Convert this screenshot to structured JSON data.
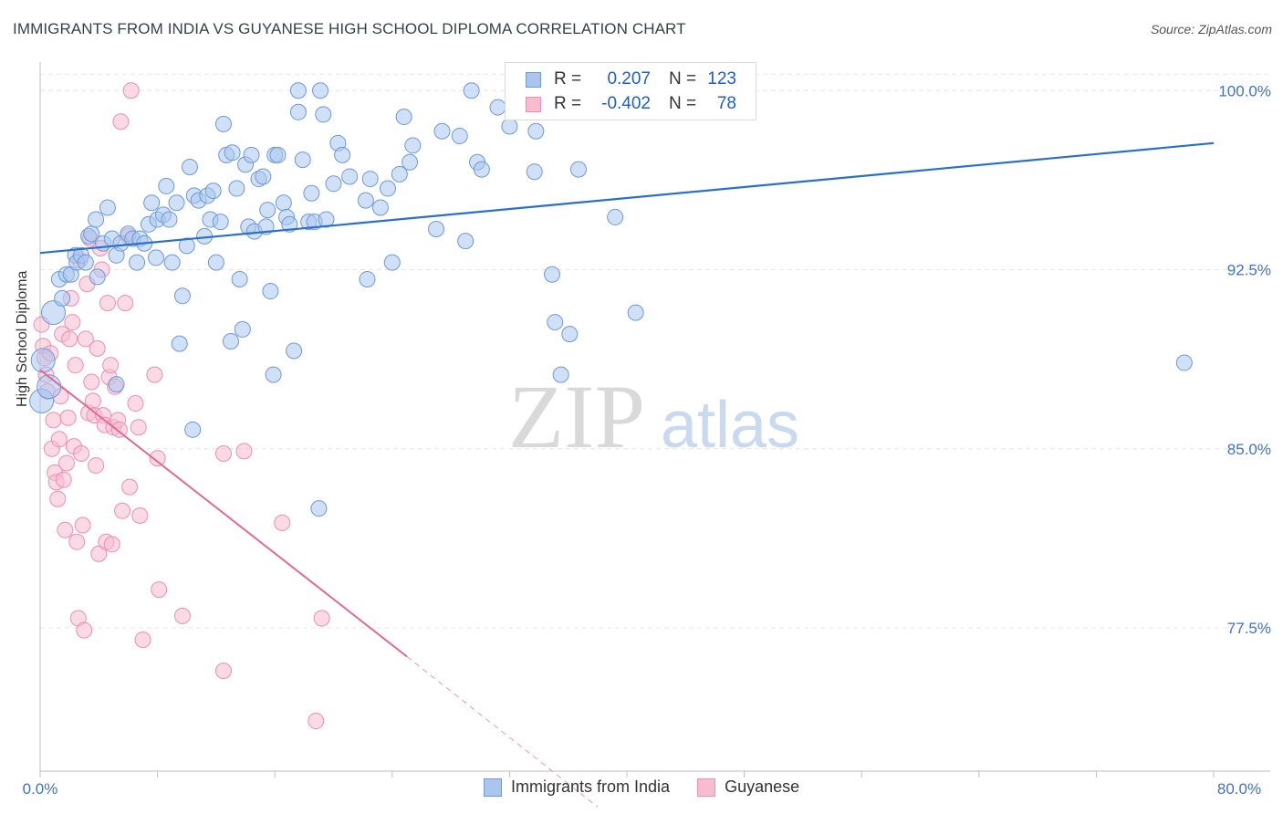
{
  "title": "IMMIGRANTS FROM INDIA VS GUYANESE HIGH SCHOOL DIPLOMA CORRELATION CHART",
  "source": "Source: ZipAtlas.com",
  "watermark": {
    "zip": "ZIP",
    "atlas": "atlas"
  },
  "legend": {
    "rows": [
      {
        "r_label": "R =",
        "r_value": "0.207",
        "n_label": "N =",
        "n_value": "123",
        "color": "#7ba7e0"
      },
      {
        "r_label": "R =",
        "r_value": "-0.402",
        "n_label": "N =",
        "n_value": "78",
        "color": "#f29bb8"
      }
    ]
  },
  "bottom_legend": [
    "Immigrants from India",
    "Guyanese"
  ],
  "colors": {
    "india_fill": "#aac6ee",
    "india_stroke": "#6d9ad8",
    "india_line": "#2c6fca",
    "guy_fill": "#f7bcd0",
    "guy_stroke": "#ec8fb0",
    "guy_line": "#e06a95",
    "grid": "#e6e6e6",
    "tick_text": "#4472c4"
  },
  "chart_data": {
    "type": "scatter",
    "title": "IMMIGRANTS FROM INDIA VS GUYANESE HIGH SCHOOL DIPLOMA CORRELATION CHART",
    "xlabel": "",
    "ylabel": "High School Diploma",
    "xlim": [
      0,
      80
    ],
    "ylim": [
      71.5,
      101.5
    ],
    "x_tick_labels": [
      "0.0%",
      "80.0%"
    ],
    "y_ticks": [
      77.5,
      85.0,
      92.5,
      100.0
    ],
    "y_tick_labels": [
      "77.5%",
      "85.0%",
      "92.5%",
      "100.0%"
    ],
    "grid": "horizontal dashed",
    "legend_position": "top-center",
    "series": [
      {
        "name": "Immigrants from India",
        "R": 0.207,
        "N": 123,
        "trend": {
          "x": [
            0,
            80
          ],
          "y": [
            93.2,
            97.8
          ]
        },
        "points": [
          [
            0.1,
            87.0
          ],
          [
            0.2,
            88.7
          ],
          [
            0.6,
            87.6
          ],
          [
            0.9,
            90.7
          ],
          [
            1.3,
            92.1
          ],
          [
            1.5,
            91.3
          ],
          [
            1.8,
            92.3
          ],
          [
            2.1,
            92.3
          ],
          [
            2.4,
            93.1
          ],
          [
            2.5,
            92.8
          ],
          [
            2.8,
            93.1
          ],
          [
            3.1,
            92.8
          ],
          [
            3.3,
            93.9
          ],
          [
            3.5,
            94.0
          ],
          [
            3.8,
            94.6
          ],
          [
            3.9,
            92.2
          ],
          [
            4.3,
            93.6
          ],
          [
            4.6,
            95.1
          ],
          [
            4.9,
            93.8
          ],
          [
            5.2,
            93.1
          ],
          [
            5.2,
            87.7
          ],
          [
            5.5,
            93.6
          ],
          [
            6.0,
            94.0
          ],
          [
            6.3,
            93.8
          ],
          [
            6.6,
            92.8
          ],
          [
            6.8,
            93.8
          ],
          [
            7.1,
            93.6
          ],
          [
            7.4,
            94.4
          ],
          [
            7.6,
            95.3
          ],
          [
            7.9,
            93.0
          ],
          [
            8.0,
            94.6
          ],
          [
            8.4,
            94.8
          ],
          [
            8.6,
            96.0
          ],
          [
            8.8,
            94.6
          ],
          [
            9.0,
            92.8
          ],
          [
            9.3,
            95.3
          ],
          [
            9.5,
            89.4
          ],
          [
            9.7,
            91.4
          ],
          [
            10.0,
            93.5
          ],
          [
            10.2,
            96.8
          ],
          [
            10.4,
            85.8
          ],
          [
            10.5,
            95.6
          ],
          [
            10.8,
            95.4
          ],
          [
            11.2,
            93.9
          ],
          [
            11.4,
            95.6
          ],
          [
            11.6,
            94.6
          ],
          [
            11.8,
            95.8
          ],
          [
            12.0,
            92.8
          ],
          [
            12.3,
            94.5
          ],
          [
            12.5,
            98.6
          ],
          [
            12.7,
            97.3
          ],
          [
            13.0,
            89.5
          ],
          [
            13.1,
            97.4
          ],
          [
            13.4,
            95.9
          ],
          [
            13.6,
            92.1
          ],
          [
            13.8,
            90.0
          ],
          [
            14.0,
            96.9
          ],
          [
            14.2,
            94.3
          ],
          [
            14.4,
            97.3
          ],
          [
            14.6,
            94.1
          ],
          [
            14.9,
            96.3
          ],
          [
            15.2,
            96.4
          ],
          [
            15.4,
            94.3
          ],
          [
            15.5,
            95.0
          ],
          [
            15.7,
            91.6
          ],
          [
            15.9,
            88.1
          ],
          [
            16.0,
            97.3
          ],
          [
            16.2,
            97.3
          ],
          [
            16.6,
            95.3
          ],
          [
            16.8,
            94.7
          ],
          [
            17.0,
            94.4
          ],
          [
            17.3,
            89.1
          ],
          [
            17.6,
            99.1
          ],
          [
            17.6,
            100.0
          ],
          [
            17.9,
            97.1
          ],
          [
            18.3,
            94.5
          ],
          [
            18.5,
            95.7
          ],
          [
            18.7,
            94.5
          ],
          [
            19.0,
            82.5
          ],
          [
            19.1,
            100.0
          ],
          [
            19.3,
            99.0
          ],
          [
            19.5,
            94.6
          ],
          [
            20.0,
            96.1
          ],
          [
            20.3,
            97.8
          ],
          [
            20.6,
            97.3
          ],
          [
            21.1,
            96.4
          ],
          [
            22.2,
            95.4
          ],
          [
            22.3,
            92.1
          ],
          [
            22.5,
            96.3
          ],
          [
            23.2,
            95.1
          ],
          [
            23.7,
            95.9
          ],
          [
            24.0,
            92.8
          ],
          [
            24.5,
            96.5
          ],
          [
            24.8,
            98.9
          ],
          [
            25.2,
            97.0
          ],
          [
            25.4,
            97.7
          ],
          [
            27.0,
            94.2
          ],
          [
            27.4,
            98.3
          ],
          [
            28.6,
            98.1
          ],
          [
            29.0,
            93.7
          ],
          [
            29.4,
            100.0
          ],
          [
            29.8,
            97.0
          ],
          [
            30.1,
            96.7
          ],
          [
            31.2,
            99.3
          ],
          [
            32.0,
            98.5
          ],
          [
            33.8,
            98.3
          ],
          [
            33.7,
            96.6
          ],
          [
            34.9,
            92.3
          ],
          [
            35.1,
            90.3
          ],
          [
            35.5,
            88.1
          ],
          [
            36.1,
            89.8
          ],
          [
            36.7,
            96.7
          ],
          [
            39.2,
            94.7
          ],
          [
            40.6,
            90.7
          ],
          [
            78.0,
            88.6
          ]
        ]
      },
      {
        "name": "Guyanese",
        "R": -0.402,
        "N": 78,
        "trend": {
          "x": [
            0,
            25
          ],
          "y": [
            88.3,
            76.3
          ]
        },
        "trend_dashed": {
          "x": [
            25,
            38
          ],
          "y": [
            76.3,
            70.0
          ]
        },
        "points": [
          [
            0.1,
            90.2
          ],
          [
            0.2,
            89.3
          ],
          [
            0.3,
            88.8
          ],
          [
            0.4,
            88.1
          ],
          [
            0.5,
            87.4
          ],
          [
            0.7,
            89.0
          ],
          [
            0.8,
            85.0
          ],
          [
            0.9,
            86.2
          ],
          [
            1.0,
            84.0
          ],
          [
            1.1,
            83.6
          ],
          [
            1.2,
            82.9
          ],
          [
            1.3,
            85.4
          ],
          [
            1.4,
            87.2
          ],
          [
            1.5,
            89.8
          ],
          [
            1.6,
            83.7
          ],
          [
            1.7,
            81.6
          ],
          [
            1.8,
            84.4
          ],
          [
            1.9,
            86.3
          ],
          [
            2.0,
            89.6
          ],
          [
            2.1,
            91.3
          ],
          [
            2.2,
            90.3
          ],
          [
            2.3,
            85.1
          ],
          [
            2.4,
            88.5
          ],
          [
            2.5,
            81.1
          ],
          [
            2.6,
            77.9
          ],
          [
            2.7,
            92.9
          ],
          [
            2.8,
            84.8
          ],
          [
            2.9,
            81.8
          ],
          [
            3.0,
            77.4
          ],
          [
            3.1,
            89.6
          ],
          [
            3.2,
            91.9
          ],
          [
            3.3,
            86.5
          ],
          [
            3.4,
            93.8
          ],
          [
            3.5,
            87.8
          ],
          [
            3.6,
            87.0
          ],
          [
            3.7,
            86.4
          ],
          [
            3.8,
            84.3
          ],
          [
            3.9,
            89.2
          ],
          [
            4.0,
            80.6
          ],
          [
            4.1,
            93.4
          ],
          [
            4.2,
            92.5
          ],
          [
            4.3,
            86.4
          ],
          [
            4.4,
            86.0
          ],
          [
            4.5,
            81.1
          ],
          [
            4.6,
            91.1
          ],
          [
            4.7,
            88.0
          ],
          [
            4.8,
            88.5
          ],
          [
            4.9,
            81.0
          ],
          [
            5.0,
            85.9
          ],
          [
            5.1,
            87.6
          ],
          [
            5.3,
            86.2
          ],
          [
            5.4,
            85.8
          ],
          [
            5.5,
            98.7
          ],
          [
            5.6,
            82.4
          ],
          [
            5.8,
            91.1
          ],
          [
            6.0,
            93.9
          ],
          [
            6.1,
            83.4
          ],
          [
            6.2,
            100.0
          ],
          [
            6.5,
            86.9
          ],
          [
            6.7,
            85.9
          ],
          [
            6.8,
            82.2
          ],
          [
            7.0,
            77.0
          ],
          [
            7.8,
            88.1
          ],
          [
            8.0,
            84.6
          ],
          [
            8.1,
            79.1
          ],
          [
            9.7,
            78.0
          ],
          [
            12.5,
            75.7
          ],
          [
            12.5,
            84.8
          ],
          [
            13.9,
            84.9
          ],
          [
            16.5,
            81.9
          ],
          [
            18.8,
            73.6
          ],
          [
            19.2,
            77.9
          ]
        ]
      }
    ]
  }
}
